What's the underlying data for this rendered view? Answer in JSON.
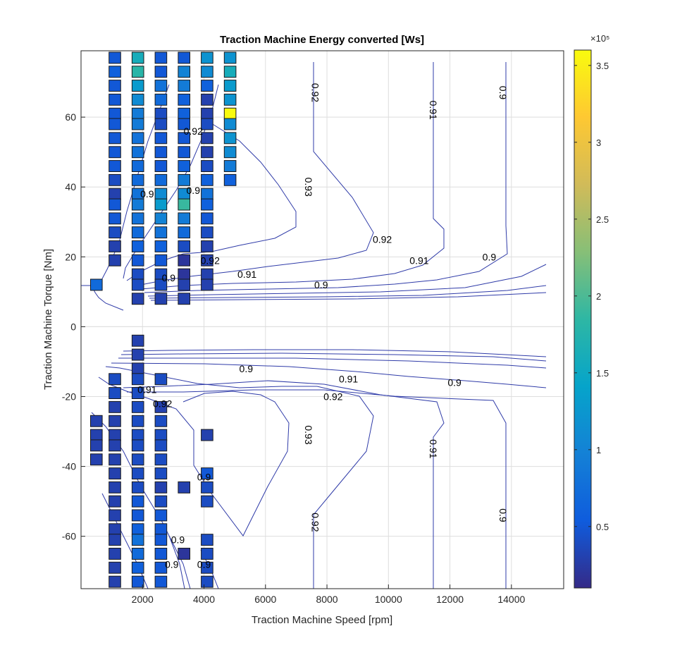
{
  "chart_data": {
    "type": "heatmap",
    "title": "Traction Machine Energy converted [Ws]",
    "xlabel": "Traction Machine Speed [rpm]",
    "ylabel": "Traction Machine Torque [Nm]",
    "xlim": [
      0,
      15700
    ],
    "ylim": [
      -75,
      79
    ],
    "xticks": [
      2000,
      4000,
      6000,
      8000,
      10000,
      12000,
      14000
    ],
    "yticks": [
      -60,
      -40,
      -20,
      0,
      20,
      40,
      60
    ],
    "grid": true,
    "colorbar": {
      "colormap": "parula",
      "range": [
        0.1,
        3.6
      ],
      "exponent_label": "×10⁵",
      "ticks": [
        0.5,
        1,
        1.5,
        2,
        2.5,
        3,
        3.5
      ],
      "tick_labels": [
        "0.5",
        "1",
        "1.5",
        "2",
        "2.5",
        "3",
        "3.5"
      ],
      "location": "right"
    },
    "cell_size": {
      "speed": 380,
      "torque": 3.2
    },
    "bin_values_unit": "×10⁵ Ws",
    "bins": {
      "speeds": [
        500,
        1100,
        1850,
        2600,
        3350,
        4100,
        4850
      ],
      "torque_values": {
        "500": [
          [
            12,
            0.7
          ],
          [
            -27,
            0.3
          ],
          [
            -31,
            0.3
          ],
          [
            -34,
            0.3
          ],
          [
            -38,
            0.3
          ]
        ],
        "1100": [
          [
            77,
            0.5
          ],
          [
            73,
            0.6
          ],
          [
            69,
            0.5
          ],
          [
            65,
            0.5
          ],
          [
            61,
            0.5
          ],
          [
            58,
            0.5
          ],
          [
            54,
            0.5
          ],
          [
            50,
            0.5
          ],
          [
            46,
            0.5
          ],
          [
            42,
            0.4
          ],
          [
            38,
            0.3
          ],
          [
            35,
            0.5
          ],
          [
            31,
            0.5
          ],
          [
            27,
            0.4
          ],
          [
            23,
            0.3
          ],
          [
            19,
            0.3
          ],
          [
            -15,
            0.4
          ],
          [
            -19,
            0.4
          ],
          [
            -23,
            0.3
          ],
          [
            -27,
            0.3
          ],
          [
            -31,
            0.3
          ],
          [
            -34,
            0.3
          ],
          [
            -38,
            0.3
          ],
          [
            -42,
            0.3
          ],
          [
            -46,
            0.3
          ],
          [
            -50,
            0.3
          ],
          [
            -54,
            0.3
          ],
          [
            -58,
            0.3
          ],
          [
            -61,
            0.3
          ],
          [
            -65,
            0.3
          ],
          [
            -69,
            0.3
          ],
          [
            -73,
            0.3
          ]
        ],
        "1850": [
          [
            77,
            1.6
          ],
          [
            73,
            1.8
          ],
          [
            69,
            1.3
          ],
          [
            65,
            1.1
          ],
          [
            61,
            0.9
          ],
          [
            58,
            0.9
          ],
          [
            54,
            0.8
          ],
          [
            50,
            0.8
          ],
          [
            46,
            0.7
          ],
          [
            42,
            0.7
          ],
          [
            38,
            0.8
          ],
          [
            35,
            0.9
          ],
          [
            31,
            0.8
          ],
          [
            27,
            0.7
          ],
          [
            23,
            0.6
          ],
          [
            19,
            0.5
          ],
          [
            15,
            0.4
          ],
          [
            12,
            0.4
          ],
          [
            8,
            0.3
          ],
          [
            -4,
            0.3
          ],
          [
            -8,
            0.3
          ],
          [
            -12,
            0.3
          ],
          [
            -15,
            0.4
          ],
          [
            -19,
            0.4
          ],
          [
            -23,
            0.4
          ],
          [
            -27,
            0.4
          ],
          [
            -31,
            0.4
          ],
          [
            -34,
            0.4
          ],
          [
            -38,
            0.4
          ],
          [
            -42,
            0.4
          ],
          [
            -46,
            0.4
          ],
          [
            -50,
            0.5
          ],
          [
            -54,
            0.5
          ],
          [
            -58,
            0.6
          ],
          [
            -61,
            0.8
          ],
          [
            -65,
            0.7
          ],
          [
            -69,
            0.6
          ],
          [
            -73,
            0.5
          ]
        ],
        "2600": [
          [
            77,
            0.5
          ],
          [
            73,
            0.5
          ],
          [
            69,
            0.8
          ],
          [
            65,
            0.7
          ],
          [
            61,
            0.4
          ],
          [
            58,
            0.4
          ],
          [
            54,
            0.5
          ],
          [
            50,
            0.5
          ],
          [
            46,
            0.5
          ],
          [
            42,
            0.7
          ],
          [
            38,
            1.1
          ],
          [
            35,
            1.3
          ],
          [
            31,
            1.0
          ],
          [
            27,
            0.8
          ],
          [
            23,
            0.6
          ],
          [
            19,
            0.5
          ],
          [
            15,
            0.4
          ],
          [
            12,
            0.4
          ],
          [
            8,
            0.3
          ],
          [
            -15,
            0.4
          ],
          [
            -23,
            0.3
          ],
          [
            -27,
            0.4
          ],
          [
            -31,
            0.4
          ],
          [
            -34,
            0.4
          ],
          [
            -38,
            0.4
          ],
          [
            -42,
            0.4
          ],
          [
            -46,
            0.3
          ],
          [
            -50,
            0.4
          ],
          [
            -54,
            0.5
          ],
          [
            -58,
            0.5
          ],
          [
            -61,
            0.5
          ],
          [
            -65,
            0.5
          ],
          [
            -69,
            0.5
          ],
          [
            -73,
            0.5
          ]
        ],
        "3350": [
          [
            77,
            0.5
          ],
          [
            73,
            1.0
          ],
          [
            69,
            0.9
          ],
          [
            65,
            0.6
          ],
          [
            61,
            0.6
          ],
          [
            58,
            0.5
          ],
          [
            54,
            0.5
          ],
          [
            50,
            0.5
          ],
          [
            46,
            0.6
          ],
          [
            42,
            0.9
          ],
          [
            38,
            1.1
          ],
          [
            35,
            1.9
          ],
          [
            31,
            0.9
          ],
          [
            27,
            0.7
          ],
          [
            23,
            0.4
          ],
          [
            19,
            0.2
          ],
          [
            15,
            0.2
          ],
          [
            12,
            0.3
          ],
          [
            8,
            0.3
          ],
          [
            -46,
            0.3
          ],
          [
            -65,
            0.2
          ]
        ],
        "4100": [
          [
            77,
            1.2
          ],
          [
            73,
            1.1
          ],
          [
            69,
            0.6
          ],
          [
            65,
            0.3
          ],
          [
            61,
            0.3
          ],
          [
            58,
            0.4
          ],
          [
            54,
            0.3
          ],
          [
            50,
            0.3
          ],
          [
            46,
            0.4
          ],
          [
            42,
            0.6
          ],
          [
            38,
            0.8
          ],
          [
            35,
            0.6
          ],
          [
            31,
            0.5
          ],
          [
            27,
            0.4
          ],
          [
            23,
            0.3
          ],
          [
            19,
            0.3
          ],
          [
            15,
            0.3
          ],
          [
            12,
            0.3
          ],
          [
            -31,
            0.3
          ],
          [
            -42,
            0.5
          ],
          [
            -46,
            0.4
          ],
          [
            -50,
            0.4
          ],
          [
            -61,
            0.4
          ],
          [
            -65,
            0.4
          ],
          [
            -69,
            0.4
          ],
          [
            -73,
            0.4
          ]
        ],
        "4850": [
          [
            77,
            1.2
          ],
          [
            73,
            1.6
          ],
          [
            69,
            1.3
          ],
          [
            65,
            1.2
          ],
          [
            61,
            3.6
          ],
          [
            58,
            1.1
          ],
          [
            54,
            1.2
          ],
          [
            50,
            1.1
          ],
          [
            46,
            0.9
          ],
          [
            42,
            0.6
          ]
        ]
      }
    },
    "contour_labels": [
      {
        "text": "0.92",
        "x": 7620,
        "y": 67
      },
      {
        "text": "0.91",
        "x": 11460,
        "y": 62
      },
      {
        "text": "0.9",
        "x": 13730,
        "y": 67
      },
      {
        "text": "0.92",
        "x": 3650,
        "y": 56
      },
      {
        "text": "0.93",
        "x": 7400,
        "y": 40
      },
      {
        "text": "0.9",
        "x": 2150,
        "y": 38
      },
      {
        "text": "0.9",
        "x": 3650,
        "y": 39
      },
      {
        "text": "0.92",
        "x": 9800,
        "y": 25
      },
      {
        "text": "0.91",
        "x": 11000,
        "y": 19
      },
      {
        "text": "0.9",
        "x": 13280,
        "y": 20
      },
      {
        "text": "0.92",
        "x": 4200,
        "y": 19
      },
      {
        "text": "0.91",
        "x": 5400,
        "y": 15
      },
      {
        "text": "0.9",
        "x": 7810,
        "y": 12
      },
      {
        "text": "0.9",
        "x": 2850,
        "y": 14
      },
      {
        "text": "0.9",
        "x": 5370,
        "y": -12
      },
      {
        "text": "0.91",
        "x": 8700,
        "y": -15
      },
      {
        "text": "0.9",
        "x": 12150,
        "y": -16
      },
      {
        "text": "0.91",
        "x": 2150,
        "y": -18
      },
      {
        "text": "0.92",
        "x": 8200,
        "y": -20
      },
      {
        "text": "0.92",
        "x": 2650,
        "y": -22
      },
      {
        "text": "0.93",
        "x": 7400,
        "y": -31
      },
      {
        "text": "0.91",
        "x": 11460,
        "y": -35
      },
      {
        "text": "0.92",
        "x": 7620,
        "y": -56
      },
      {
        "text": "0.9",
        "x": 13730,
        "y": -54
      },
      {
        "text": "0.9",
        "x": 4000,
        "y": -43
      },
      {
        "text": "0.9",
        "x": 3150,
        "y": -61
      },
      {
        "text": "0.9",
        "x": 2950,
        "y": -68
      },
      {
        "text": "0.9",
        "x": 4000,
        "y": -68
      }
    ]
  },
  "colors": {
    "contour_line": "#2f3ba8",
    "cell_edge": "#1a1a1a",
    "grid": "#dedede",
    "axis": "#262626"
  }
}
